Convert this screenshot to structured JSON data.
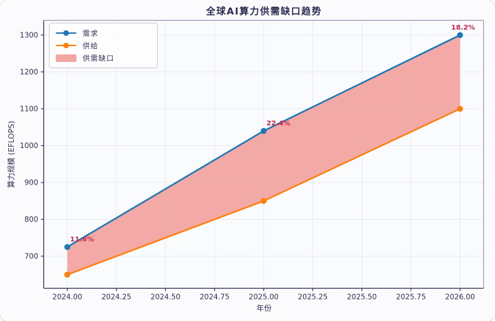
{
  "chart_data": {
    "type": "line",
    "title": "全球AI算力供需缺口趋势",
    "xlabel": "年份",
    "ylabel": "算力规模 (EFLOPS)",
    "x": [
      2024,
      2025,
      2026
    ],
    "series": [
      {
        "name": "需求",
        "values": [
          725,
          1040,
          1300
        ],
        "color": "#1f77b4",
        "marker": "circle"
      },
      {
        "name": "供给",
        "values": [
          650,
          850,
          1100
        ],
        "color": "#ff7f0e",
        "marker": "circle"
      }
    ],
    "fill_between": {
      "label": "供需缺口",
      "color": "#f2a5a2"
    },
    "annotations": [
      {
        "x": 2024,
        "text": "11.6%"
      },
      {
        "x": 2025,
        "text": "22.4%"
      },
      {
        "x": 2026,
        "text": "18.2%"
      }
    ],
    "annotation_color": "#c9294e",
    "xtick_labels": [
      "2024.00",
      "2024.25",
      "2024.50",
      "2024.75",
      "2025.00",
      "2025.25",
      "2025.50",
      "2025.75",
      "2026.00"
    ],
    "ytick_labels": [
      "700",
      "800",
      "900",
      "1000",
      "1100",
      "1200",
      "1300"
    ],
    "xlim": [
      2023.88,
      2026.12
    ],
    "ylim": [
      613,
      1340
    ],
    "grid": true,
    "legend_position": "upper-left",
    "colors": {
      "text": "#2f2f55",
      "spine_dark": "#383858",
      "spine_light": "#9d9db2",
      "grid": "#e7ebf2",
      "axes_background": "#fafbfd"
    }
  }
}
